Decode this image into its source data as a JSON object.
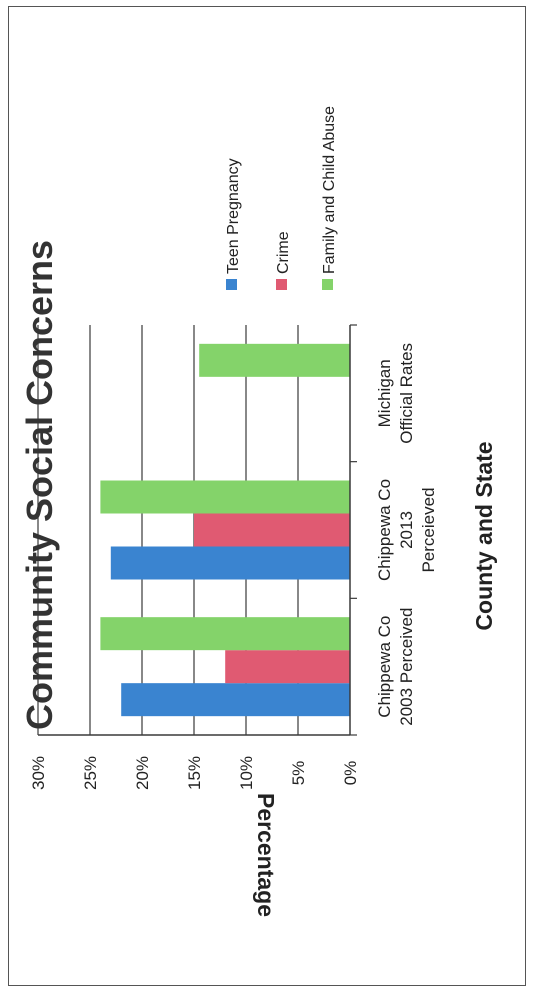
{
  "chart_data": {
    "type": "bar",
    "orientation": "rotated page (vertical bars, image turned 90°)",
    "title": "Community Social Concerns",
    "xlabel": "County and State",
    "ylabel": "Percentage",
    "ylim": [
      0,
      30
    ],
    "yticks": [
      "0%",
      "5%",
      "10%",
      "15%",
      "20%",
      "25%",
      "30%"
    ],
    "grid": true,
    "legend_position": "right",
    "categories": [
      [
        "Chippewa Co",
        "2003 Perceived"
      ],
      [
        "Chippewa Co",
        "2013",
        "Perceieved"
      ],
      [
        "Michigan",
        "Official Rates"
      ]
    ],
    "series": [
      {
        "name": "Teen Pregnancy",
        "color": "#3a84d0",
        "values": [
          22,
          23,
          null
        ]
      },
      {
        "name": "Crime",
        "color": "#e05a72",
        "values": [
          12,
          15,
          null
        ]
      },
      {
        "name": "Family and Child Abuse",
        "color": "#84d36a",
        "values": [
          24,
          24,
          14.5
        ]
      }
    ]
  }
}
